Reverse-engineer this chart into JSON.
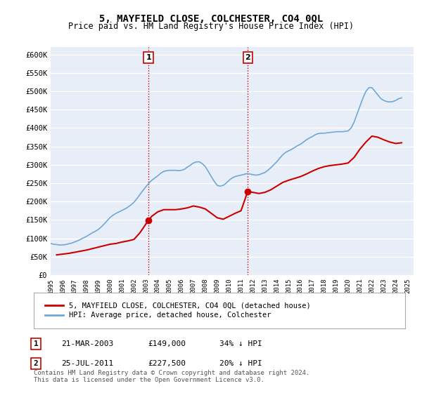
{
  "title": "5, MAYFIELD CLOSE, COLCHESTER, CO4 0QL",
  "subtitle": "Price paid vs. HM Land Registry's House Price Index (HPI)",
  "title_fontsize": 12,
  "subtitle_fontsize": 10,
  "background_color": "#ffffff",
  "plot_bg_color": "#e8eef7",
  "grid_color": "#ffffff",
  "ylabel_ticks": [
    "£0",
    "£50K",
    "£100K",
    "£150K",
    "£200K",
    "£250K",
    "£300K",
    "£350K",
    "£400K",
    "£450K",
    "£500K",
    "£550K",
    "£600K"
  ],
  "ytick_values": [
    0,
    50000,
    100000,
    150000,
    200000,
    250000,
    300000,
    350000,
    400000,
    450000,
    500000,
    550000,
    600000
  ],
  "ylim": [
    0,
    620000
  ],
  "xlim_start": 1995.0,
  "xlim_end": 2025.5,
  "xtick_years": [
    1995,
    1996,
    1997,
    1998,
    1999,
    2000,
    2001,
    2002,
    2003,
    2004,
    2005,
    2006,
    2007,
    2008,
    2009,
    2010,
    2011,
    2012,
    2013,
    2014,
    2015,
    2016,
    2017,
    2018,
    2019,
    2020,
    2021,
    2022,
    2023,
    2024,
    2025
  ],
  "hpi_color": "#6fa8d8",
  "price_color": "#cc0000",
  "sale1_x": 2003.22,
  "sale1_y": 149000,
  "sale1_label": "1",
  "sale2_x": 2011.56,
  "sale2_y": 227500,
  "sale2_label": "2",
  "vline_color": "#cc0000",
  "vline_style": ":",
  "marker_color": "#cc0000",
  "legend_label_price": "5, MAYFIELD CLOSE, COLCHESTER, CO4 0QL (detached house)",
  "legend_label_hpi": "HPI: Average price, detached house, Colchester",
  "table_rows": [
    {
      "num": "1",
      "date": "21-MAR-2003",
      "price": "£149,000",
      "note": "34% ↓ HPI"
    },
    {
      "num": "2",
      "date": "25-JUL-2011",
      "price": "£227,500",
      "note": "20% ↓ HPI"
    }
  ],
  "footer": "Contains HM Land Registry data © Crown copyright and database right 2024.\nThis data is licensed under the Open Government Licence v3.0.",
  "hpi_data_x": [
    1995.0,
    1995.25,
    1995.5,
    1995.75,
    1996.0,
    1996.25,
    1996.5,
    1996.75,
    1997.0,
    1997.25,
    1997.5,
    1997.75,
    1998.0,
    1998.25,
    1998.5,
    1998.75,
    1999.0,
    1999.25,
    1999.5,
    1999.75,
    2000.0,
    2000.25,
    2000.5,
    2000.75,
    2001.0,
    2001.25,
    2001.5,
    2001.75,
    2002.0,
    2002.25,
    2002.5,
    2002.75,
    2003.0,
    2003.25,
    2003.5,
    2003.75,
    2004.0,
    2004.25,
    2004.5,
    2004.75,
    2005.0,
    2005.25,
    2005.5,
    2005.75,
    2006.0,
    2006.25,
    2006.5,
    2006.75,
    2007.0,
    2007.25,
    2007.5,
    2007.75,
    2008.0,
    2008.25,
    2008.5,
    2008.75,
    2009.0,
    2009.25,
    2009.5,
    2009.75,
    2010.0,
    2010.25,
    2010.5,
    2010.75,
    2011.0,
    2011.25,
    2011.5,
    2011.75,
    2012.0,
    2012.25,
    2012.5,
    2012.75,
    2013.0,
    2013.25,
    2013.5,
    2013.75,
    2014.0,
    2014.25,
    2014.5,
    2014.75,
    2015.0,
    2015.25,
    2015.5,
    2015.75,
    2016.0,
    2016.25,
    2016.5,
    2016.75,
    2017.0,
    2017.25,
    2017.5,
    2017.75,
    2018.0,
    2018.25,
    2018.5,
    2018.75,
    2019.0,
    2019.25,
    2019.5,
    2019.75,
    2020.0,
    2020.25,
    2020.5,
    2020.75,
    2021.0,
    2021.25,
    2021.5,
    2021.75,
    2022.0,
    2022.25,
    2022.5,
    2022.75,
    2023.0,
    2023.25,
    2023.5,
    2023.75,
    2024.0,
    2024.25,
    2024.5
  ],
  "hpi_data_y": [
    86000,
    84000,
    83000,
    82000,
    82000,
    83000,
    85000,
    87000,
    90000,
    93000,
    97000,
    101000,
    105000,
    110000,
    115000,
    119000,
    124000,
    131000,
    139000,
    148000,
    157000,
    163000,
    168000,
    172000,
    176000,
    180000,
    185000,
    191000,
    198000,
    208000,
    219000,
    230000,
    240000,
    250000,
    258000,
    264000,
    270000,
    277000,
    282000,
    284000,
    285000,
    285000,
    285000,
    284000,
    285000,
    288000,
    294000,
    299000,
    305000,
    308000,
    308000,
    303000,
    295000,
    282000,
    268000,
    255000,
    244000,
    242000,
    244000,
    250000,
    258000,
    264000,
    268000,
    270000,
    272000,
    274000,
    276000,
    275000,
    273000,
    272000,
    273000,
    276000,
    279000,
    285000,
    292000,
    300000,
    308000,
    318000,
    327000,
    334000,
    338000,
    342000,
    347000,
    352000,
    356000,
    362000,
    368000,
    373000,
    377000,
    382000,
    385000,
    386000,
    386000,
    387000,
    388000,
    389000,
    390000,
    390000,
    390000,
    391000,
    392000,
    400000,
    416000,
    438000,
    460000,
    482000,
    500000,
    510000,
    510000,
    500000,
    490000,
    480000,
    475000,
    472000,
    471000,
    472000,
    475000,
    480000,
    482000
  ],
  "price_data_x": [
    1995.5,
    1996.0,
    1996.5,
    1997.0,
    1997.5,
    1998.0,
    1998.5,
    1999.0,
    1999.5,
    2000.0,
    2000.5,
    2001.0,
    2001.5,
    2002.0,
    2002.5,
    2003.22,
    2003.5,
    2004.0,
    2004.5,
    2005.0,
    2005.5,
    2006.0,
    2006.5,
    2007.0,
    2007.5,
    2008.0,
    2008.5,
    2009.0,
    2009.5,
    2010.0,
    2010.5,
    2011.0,
    2011.56,
    2012.0,
    2012.5,
    2013.0,
    2013.5,
    2014.0,
    2014.5,
    2015.0,
    2015.5,
    2016.0,
    2016.5,
    2017.0,
    2017.5,
    2018.0,
    2018.5,
    2019.0,
    2019.5,
    2020.0,
    2020.5,
    2021.0,
    2021.5,
    2022.0,
    2022.5,
    2023.0,
    2023.5,
    2024.0,
    2024.5
  ],
  "price_data_y": [
    55000,
    57000,
    59000,
    62000,
    65000,
    68000,
    72000,
    76000,
    80000,
    84000,
    86000,
    90000,
    93000,
    97000,
    115000,
    149000,
    160000,
    172000,
    178000,
    178000,
    178000,
    180000,
    183000,
    188000,
    185000,
    180000,
    168000,
    156000,
    152000,
    160000,
    168000,
    175000,
    227500,
    225000,
    222000,
    225000,
    232000,
    242000,
    252000,
    258000,
    263000,
    268000,
    275000,
    283000,
    290000,
    295000,
    298000,
    300000,
    302000,
    305000,
    320000,
    343000,
    362000,
    378000,
    375000,
    368000,
    362000,
    358000,
    360000
  ]
}
